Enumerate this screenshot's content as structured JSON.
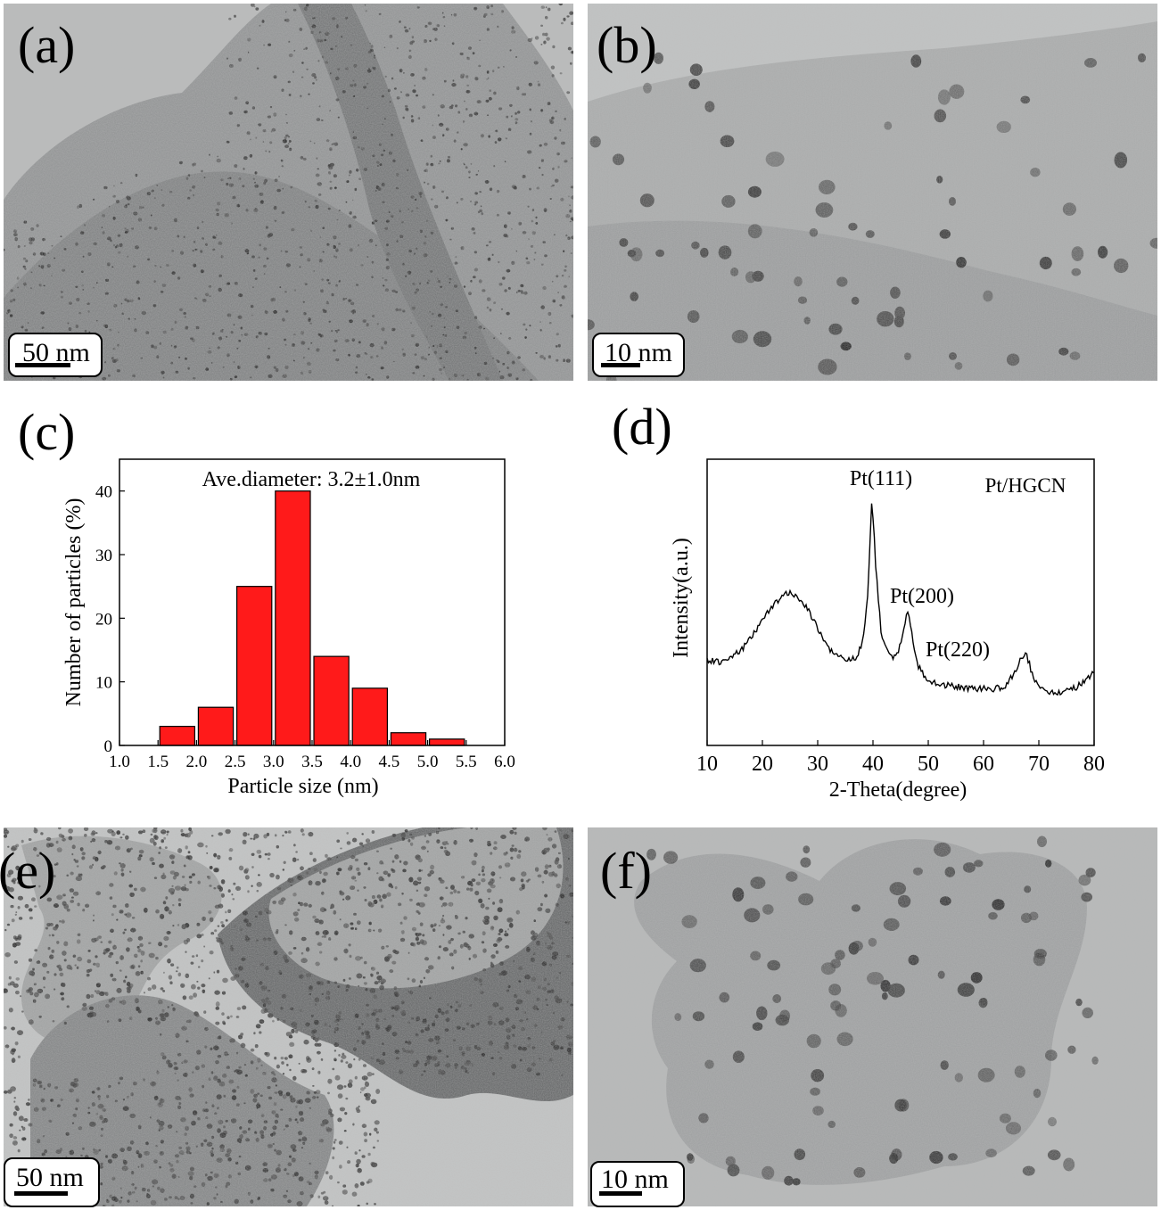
{
  "figure": {
    "panels": [
      {
        "id": "a",
        "label": "(a)",
        "type": "tem-micrograph",
        "scale_bar": "50 nm"
      },
      {
        "id": "b",
        "label": "(b)",
        "type": "tem-micrograph",
        "scale_bar": "10 nm"
      },
      {
        "id": "e",
        "label": "(e)",
        "type": "tem-micrograph",
        "scale_bar": "50 nm"
      },
      {
        "id": "f",
        "label": "(f)",
        "type": "tem-micrograph",
        "scale_bar": "10 nm"
      }
    ],
    "panel_c_label": "(c)",
    "panel_d_label": "(d)"
  },
  "chart_data": [
    {
      "type": "bar",
      "panel": "c",
      "title": "",
      "annotation": "Ave.diameter: 3.2±1.0nm",
      "xlabel": "Particle size (nm)",
      "ylabel": "Number of particles (%)",
      "xlim": [
        1.0,
        6.0
      ],
      "ylim": [
        0,
        45
      ],
      "xticks": [
        "1.0",
        "1.5",
        "2.0",
        "2.5",
        "3.0",
        "3.5",
        "4.0",
        "4.5",
        "5.0",
        "5.5",
        "6.0"
      ],
      "yticks": [
        "0",
        "10",
        "20",
        "30",
        "40"
      ],
      "bin_width": 0.5,
      "bins": [
        {
          "center": 1.75,
          "value": 3
        },
        {
          "center": 2.25,
          "value": 6
        },
        {
          "center": 2.75,
          "value": 25
        },
        {
          "center": 3.25,
          "value": 40
        },
        {
          "center": 3.75,
          "value": 14
        },
        {
          "center": 4.25,
          "value": 9
        },
        {
          "center": 4.75,
          "value": 2
        },
        {
          "center": 5.25,
          "value": 1
        }
      ],
      "bar_color": "#ff1a1a"
    },
    {
      "type": "line",
      "panel": "d",
      "title": "",
      "xlabel": "2-Theta(degree)",
      "ylabel": "Intensity(a.u.)",
      "xlim": [
        10,
        80
      ],
      "xticks": [
        "10",
        "20",
        "30",
        "40",
        "50",
        "60",
        "70",
        "80"
      ],
      "yticks_shown": false,
      "legend": "Pt/HGCN",
      "peaks": [
        {
          "label": "Pt(111)",
          "x": 39.8
        },
        {
          "label": "Pt(200)",
          "x": 46.3
        },
        {
          "label": "Pt(220)",
          "x": 67.6
        }
      ],
      "series": [
        {
          "x": [
            10,
            12,
            14,
            16,
            18,
            20,
            22,
            24,
            25,
            26,
            28,
            30,
            32,
            34,
            36,
            37,
            38,
            39,
            39.8,
            40.5,
            41.5,
            43,
            44,
            45,
            46.3,
            47,
            48,
            50,
            52,
            55,
            58,
            62,
            64,
            65.5,
            67.6,
            69,
            71,
            73,
            75,
            77,
            79,
            80
          ],
          "y": [
            0.26,
            0.25,
            0.27,
            0.3,
            0.36,
            0.44,
            0.51,
            0.55,
            0.56,
            0.55,
            0.5,
            0.4,
            0.31,
            0.27,
            0.26,
            0.27,
            0.33,
            0.52,
            1.0,
            0.68,
            0.38,
            0.27,
            0.27,
            0.33,
            0.48,
            0.38,
            0.24,
            0.16,
            0.15,
            0.14,
            0.13,
            0.13,
            0.14,
            0.2,
            0.3,
            0.18,
            0.12,
            0.11,
            0.12,
            0.14,
            0.18,
            0.2
          ]
        }
      ]
    }
  ]
}
